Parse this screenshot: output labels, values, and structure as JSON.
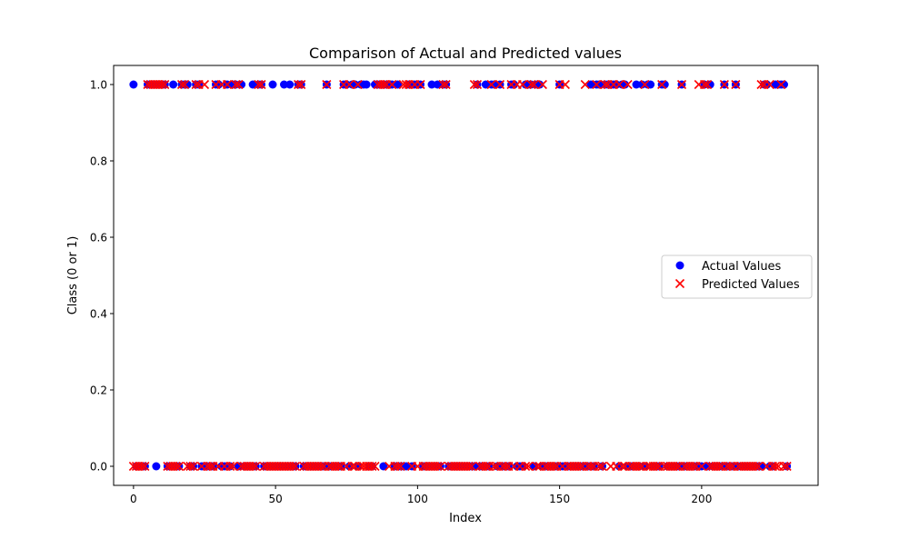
{
  "chart_data": {
    "type": "scatter",
    "title": "Comparison of Actual and Predicted values",
    "xlabel": "Index",
    "ylabel": "Class (0 or 1)",
    "xlim": [
      -7,
      241
    ],
    "ylim": [
      -0.05,
      1.05
    ],
    "xticks": [
      0,
      50,
      100,
      150,
      200
    ],
    "yticks": [
      0.0,
      0.2,
      0.4,
      0.6,
      0.8,
      1.0
    ],
    "ytick_labels": [
      "0.0",
      "0.2",
      "0.4",
      "0.6",
      "0.8",
      "1.0"
    ],
    "grid": false,
    "legend_position": "center-right",
    "n": 231,
    "actual_ones": [
      0,
      5,
      6,
      7,
      9,
      10,
      11,
      14,
      17,
      18,
      19,
      22,
      23,
      29,
      30,
      33,
      35,
      36,
      38,
      42,
      44,
      45,
      49,
      53,
      55,
      58,
      59,
      68,
      74,
      75,
      77,
      78,
      80,
      81,
      82,
      85,
      86,
      87,
      89,
      90,
      91,
      93,
      97,
      99,
      100,
      101,
      105,
      107,
      109,
      110,
      121,
      124,
      126,
      127,
      129,
      133,
      134,
      138,
      139,
      140,
      142,
      143,
      150,
      161,
      163,
      164,
      166,
      167,
      168,
      169,
      170,
      172,
      173,
      177,
      179,
      181,
      182,
      186,
      187,
      193,
      201,
      203,
      208,
      212,
      222,
      223,
      226,
      227,
      228,
      229
    ],
    "predicted_ones": [
      5,
      6,
      7,
      8,
      9,
      10,
      11,
      17,
      18,
      22,
      23,
      25,
      29,
      31,
      33,
      36,
      37,
      44,
      45,
      58,
      59,
      68,
      74,
      76,
      79,
      86,
      87,
      88,
      89,
      91,
      95,
      96,
      97,
      99,
      101,
      109,
      110,
      120,
      121,
      126,
      129,
      133,
      135,
      137,
      140,
      141,
      144,
      150,
      152,
      159,
      163,
      166,
      167,
      169,
      171,
      174,
      180,
      186,
      193,
      199,
      201,
      202,
      208,
      212,
      221,
      222,
      224,
      228
    ],
    "series": [
      {
        "name": "Actual Values",
        "marker": "circle",
        "color": "#0000ff"
      },
      {
        "name": "Predicted Values",
        "marker": "x",
        "color": "#ff0000"
      }
    ]
  }
}
